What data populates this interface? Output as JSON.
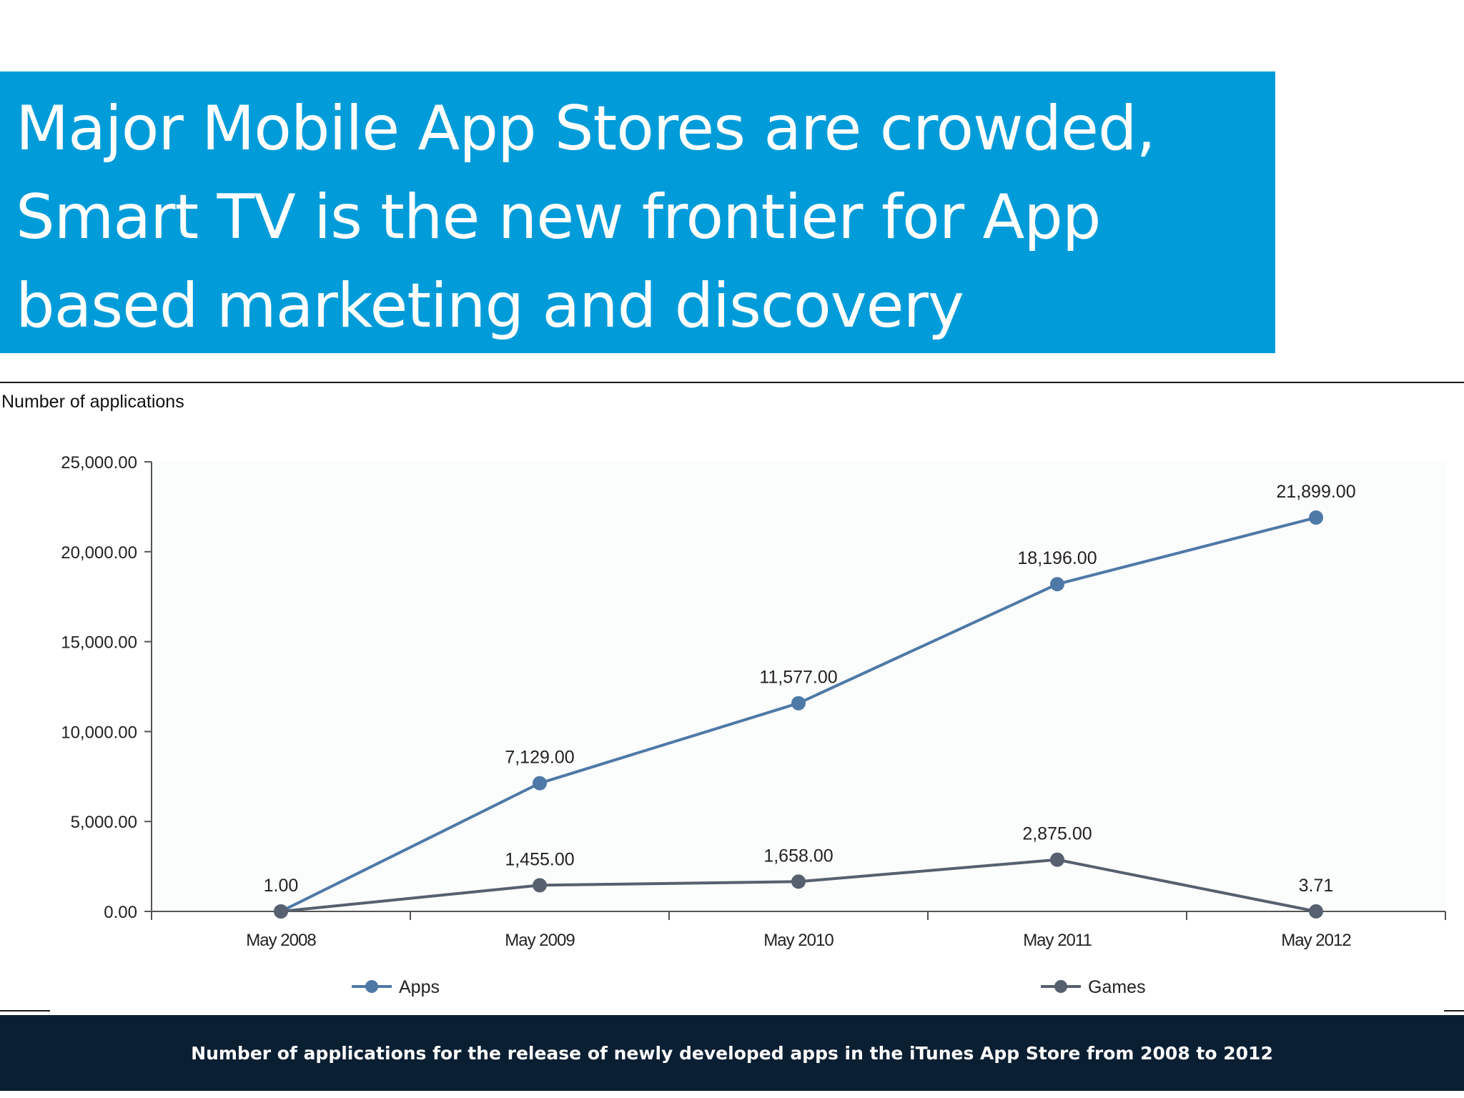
{
  "slide": {
    "title_lines": [
      "Major Mobile App Stores are crowded,",
      "Smart TV is the new frontier for App",
      "based marketing and discovery"
    ],
    "footer": "Number of applications for the release of newly developed apps in the iTunes App Store from 2008 to 2012",
    "banner_color": "#009cda",
    "footer_color": "#0b1f33"
  },
  "chart_data": {
    "type": "line",
    "title": "",
    "xlabel": "",
    "ylabel": "Number of applications",
    "categories": [
      "May 2008",
      "May 2009",
      "May 2010",
      "May 2011",
      "May 2012"
    ],
    "ylim": [
      0,
      25000
    ],
    "yticks": [
      "0.00",
      "5,000.00",
      "10,000.00",
      "15,000.00",
      "20,000.00",
      "25,000.00"
    ],
    "grid": false,
    "legend_position": "bottom",
    "series": [
      {
        "name": "Apps",
        "color": "#4e79a7",
        "values": [
          1,
          7129,
          11577,
          18196,
          21899
        ],
        "labels": [
          "1.00",
          "7,129.00",
          "11,577.00",
          "18,196.00",
          "21,899.00"
        ]
      },
      {
        "name": "Games",
        "color": "#56606e",
        "values": [
          1,
          1455,
          1658,
          2875,
          3.71
        ],
        "labels": [
          "",
          "1,455.00",
          "1,658.00",
          "2,875.00",
          "3.71"
        ]
      }
    ]
  }
}
